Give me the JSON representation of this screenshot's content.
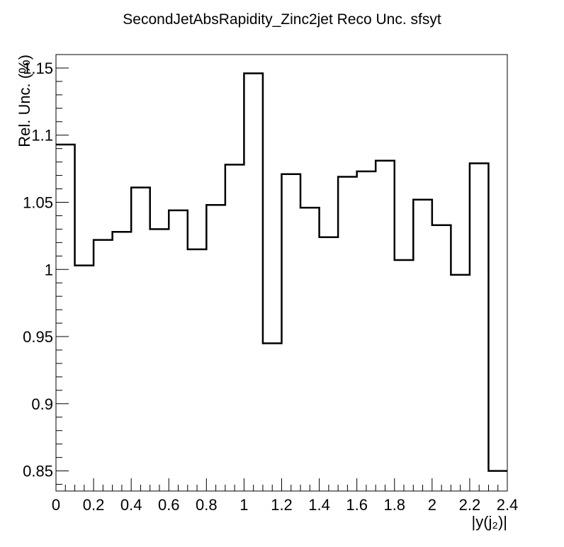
{
  "chart_data": {
    "type": "line",
    "style": "step-histogram",
    "title": "SecondJetAbsRapidity_Zinc2jet Reco Unc. sfsyt",
    "xlabel": "|y(j₂)|",
    "ylabel": "Rel. Unc. (%)",
    "xlim": [
      0,
      2.4
    ],
    "ylim": [
      0.835,
      1.16
    ],
    "xticks": [
      "0",
      "0.2",
      "0.4",
      "0.6",
      "0.8",
      "1",
      "1.2",
      "1.4",
      "1.6",
      "1.8",
      "2",
      "2.2",
      "2.4"
    ],
    "yticks": [
      "0.85",
      "0.9",
      "0.95",
      "1",
      "1.05",
      "1.1",
      "1.15"
    ],
    "bin_edges": [
      0,
      0.1,
      0.2,
      0.3,
      0.4,
      0.5,
      0.6,
      0.7,
      0.8,
      0.9,
      1.0,
      1.1,
      1.2,
      1.3,
      1.4,
      1.5,
      1.6,
      1.7,
      1.8,
      1.9,
      2.0,
      2.1,
      2.2,
      2.3,
      2.4
    ],
    "values": [
      1.093,
      1.003,
      1.022,
      1.028,
      1.061,
      1.03,
      1.044,
      1.015,
      1.048,
      1.078,
      1.146,
      0.945,
      1.071,
      1.046,
      1.024,
      1.069,
      1.073,
      1.081,
      1.007,
      1.052,
      1.033,
      0.996,
      1.079,
      0.85
    ],
    "grid": false,
    "legend": "none"
  }
}
